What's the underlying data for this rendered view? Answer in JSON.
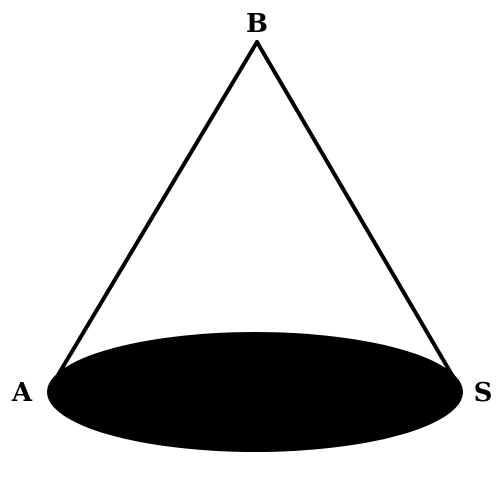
{
  "diagram": {
    "shape": "cone",
    "labels": {
      "apex": "B",
      "left": "A",
      "right": "S"
    },
    "colors": {
      "stroke": "#000000",
      "base_fill": "#000000",
      "background": "#ffffff"
    }
  }
}
